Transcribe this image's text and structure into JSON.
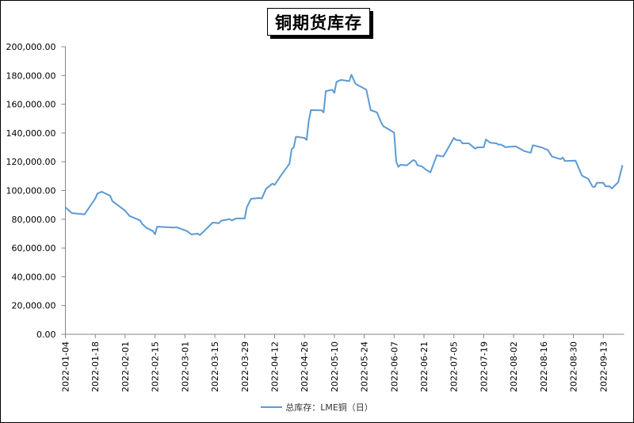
{
  "chart_data": {
    "type": "line",
    "title": "铜期货库存",
    "xlabel": "",
    "ylabel": "",
    "ylim": [
      0,
      200000
    ],
    "yticks": [
      "0.00",
      "20,000.00",
      "40,000.00",
      "60,000.00",
      "80,000.00",
      "100,000.00",
      "120,000.00",
      "140,000.00",
      "160,000.00",
      "180,000.00",
      "200,000.00"
    ],
    "xticks": [
      "2022-01-04",
      "2022-01-18",
      "2022-02-01",
      "2022-02-15",
      "2022-03-01",
      "2022-03-15",
      "2022-03-29",
      "2022-04-12",
      "2022-04-26",
      "2022-05-10",
      "2022-05-24",
      "2022-06-07",
      "2022-06-21",
      "2022-07-05",
      "2022-07-19",
      "2022-08-02",
      "2022-08-16",
      "2022-08-30",
      "2022-09-13"
    ],
    "xlim": [
      "2022-01-04",
      "2022-09-22"
    ],
    "grid": false,
    "legend_position": "bottom",
    "series": [
      {
        "name": "总库存：LME铜（日）",
        "color": "#5b9bd5",
        "points": [
          [
            "2022-01-04",
            88300
          ],
          [
            "2022-01-07",
            84300
          ],
          [
            "2022-01-13",
            83400
          ],
          [
            "2022-01-18",
            94400
          ],
          [
            "2022-01-19",
            97900
          ],
          [
            "2022-01-21",
            99200
          ],
          [
            "2022-01-25",
            96300
          ],
          [
            "2022-01-26",
            92600
          ],
          [
            "2022-02-01",
            86000
          ],
          [
            "2022-02-03",
            82300
          ],
          [
            "2022-02-08",
            79200
          ],
          [
            "2022-02-09",
            76700
          ],
          [
            "2022-02-11",
            74000
          ],
          [
            "2022-02-14",
            71800
          ],
          [
            "2022-02-15",
            69600
          ],
          [
            "2022-02-16",
            74900
          ],
          [
            "2022-02-24",
            74200
          ],
          [
            "2022-02-25",
            74500
          ],
          [
            "2022-03-02",
            71800
          ],
          [
            "2022-03-04",
            69400
          ],
          [
            "2022-03-07",
            70000
          ],
          [
            "2022-03-08",
            69000
          ],
          [
            "2022-03-10",
            71800
          ],
          [
            "2022-03-14",
            77700
          ],
          [
            "2022-03-17",
            77300
          ],
          [
            "2022-03-18",
            79000
          ],
          [
            "2022-03-22",
            80100
          ],
          [
            "2022-03-23",
            79200
          ],
          [
            "2022-03-25",
            80600
          ],
          [
            "2022-03-29",
            80600
          ],
          [
            "2022-03-30",
            88300
          ],
          [
            "2022-04-01",
            94200
          ],
          [
            "2022-04-05",
            94800
          ],
          [
            "2022-04-06",
            94400
          ],
          [
            "2022-04-08",
            101200
          ],
          [
            "2022-04-11",
            104800
          ],
          [
            "2022-04-12",
            103900
          ],
          [
            "2022-04-15",
            110400
          ],
          [
            "2022-04-19",
            118600
          ],
          [
            "2022-04-20",
            128700
          ],
          [
            "2022-04-21",
            130000
          ],
          [
            "2022-04-22",
            137400
          ],
          [
            "2022-04-26",
            136600
          ],
          [
            "2022-04-27",
            135200
          ],
          [
            "2022-04-28",
            148400
          ],
          [
            "2022-04-29",
            155900
          ],
          [
            "2022-05-04",
            155800
          ],
          [
            "2022-05-05",
            154300
          ],
          [
            "2022-05-06",
            169100
          ],
          [
            "2022-05-09",
            170100
          ],
          [
            "2022-05-10",
            167900
          ],
          [
            "2022-05-11",
            175600
          ],
          [
            "2022-05-13",
            176900
          ],
          [
            "2022-05-17",
            176100
          ],
          [
            "2022-05-18",
            180500
          ],
          [
            "2022-05-20",
            174100
          ],
          [
            "2022-05-25",
            170100
          ],
          [
            "2022-05-27",
            155900
          ],
          [
            "2022-05-30",
            154300
          ],
          [
            "2022-06-01",
            147100
          ],
          [
            "2022-06-02",
            144700
          ],
          [
            "2022-06-07",
            140300
          ],
          [
            "2022-06-08",
            120100
          ],
          [
            "2022-06-09",
            116400
          ],
          [
            "2022-06-10",
            117900
          ],
          [
            "2022-06-13",
            117500
          ],
          [
            "2022-06-16",
            121200
          ],
          [
            "2022-06-17",
            120500
          ],
          [
            "2022-06-18",
            117500
          ],
          [
            "2022-06-20",
            116800
          ],
          [
            "2022-06-22",
            114400
          ],
          [
            "2022-06-24",
            112600
          ],
          [
            "2022-06-27",
            124500
          ],
          [
            "2022-06-30",
            123600
          ],
          [
            "2022-07-01",
            126000
          ],
          [
            "2022-07-05",
            136600
          ],
          [
            "2022-07-06",
            135200
          ],
          [
            "2022-07-08",
            134800
          ],
          [
            "2022-07-09",
            132800
          ],
          [
            "2022-07-12",
            132800
          ],
          [
            "2022-07-15",
            129100
          ],
          [
            "2022-07-16",
            130000
          ],
          [
            "2022-07-19",
            130000
          ],
          [
            "2022-07-20",
            135500
          ],
          [
            "2022-07-22",
            133300
          ],
          [
            "2022-07-25",
            132800
          ],
          [
            "2022-07-26",
            131800
          ],
          [
            "2022-07-27",
            132000
          ],
          [
            "2022-07-29",
            130200
          ],
          [
            "2022-08-03",
            130700
          ],
          [
            "2022-08-07",
            127400
          ],
          [
            "2022-08-10",
            126300
          ],
          [
            "2022-08-11",
            131500
          ],
          [
            "2022-08-15",
            130000
          ],
          [
            "2022-08-18",
            128200
          ],
          [
            "2022-08-20",
            123600
          ],
          [
            "2022-08-24",
            121800
          ],
          [
            "2022-08-25",
            122900
          ],
          [
            "2022-08-26",
            120500
          ],
          [
            "2022-08-31",
            120800
          ],
          [
            "2022-09-03",
            110400
          ],
          [
            "2022-09-06",
            108000
          ],
          [
            "2022-09-08",
            102600
          ],
          [
            "2022-09-09",
            102500
          ],
          [
            "2022-09-10",
            105400
          ],
          [
            "2022-09-13",
            105400
          ],
          [
            "2022-09-14",
            102900
          ],
          [
            "2022-09-16",
            103000
          ],
          [
            "2022-09-17",
            101400
          ],
          [
            "2022-09-20",
            105800
          ],
          [
            "2022-09-22",
            117700
          ]
        ]
      }
    ]
  }
}
